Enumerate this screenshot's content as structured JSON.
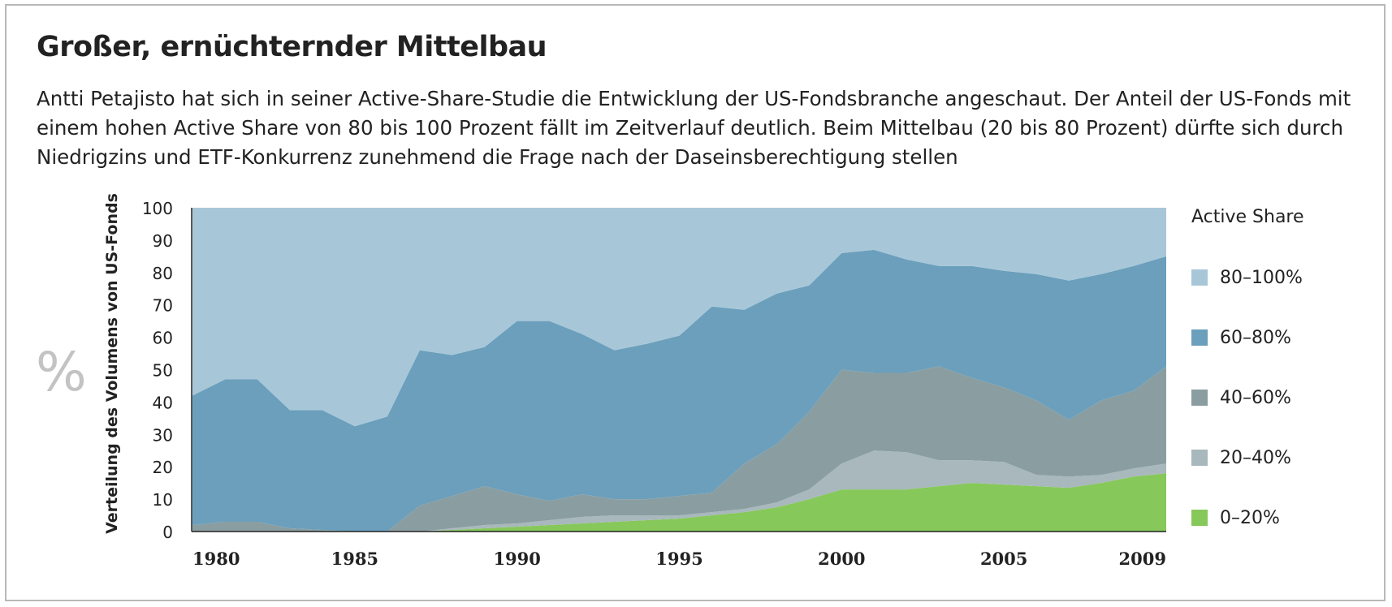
{
  "title": "Großer, ernüchternder Mittelbau",
  "subtitle": "Antti Petajisto hat sich in seiner Active-Share-Studie die Entwicklung der US-Fondsbranche angeschaut. Der Anteil der US-Fonds mit einem hohen Active Share von 80 bis 100 Prozent fällt im Zeitverlauf deutlich. Beim Mittelbau (20 bis 80 Prozent) dürfte sich durch Niedrigzins und ETF-Konkurrenz zunehmend die Frage nach der Daseinsberechtigung stellen",
  "unit_symbol": "%",
  "chart_data": {
    "type": "area",
    "stacked": true,
    "ylabel": "Verteilung des Volumens von US-Fonds",
    "ylim": [
      0,
      100
    ],
    "xlim": [
      1980,
      2010
    ],
    "x_ticks": [
      1980,
      1985,
      1990,
      1995,
      2000,
      2005,
      2009
    ],
    "y_ticks": [
      0,
      10,
      20,
      30,
      40,
      50,
      60,
      70,
      80,
      90,
      100
    ],
    "legend_title": "Active Share",
    "legend_position": "right",
    "x": [
      1980,
      1981,
      1982,
      1983,
      1984,
      1985,
      1986,
      1987,
      1988,
      1989,
      1990,
      1991,
      1992,
      1993,
      1994,
      1995,
      1996,
      1997,
      1998,
      1999,
      2000,
      2001,
      2002,
      2003,
      2004,
      2005,
      2006,
      2007,
      2008,
      2009,
      2010
    ],
    "series": [
      {
        "name": "0–20%",
        "color": "#86c85a",
        "values": [
          0,
          0,
          0,
          0,
          0,
          0,
          0,
          0,
          0.5,
          1,
          1.5,
          2,
          2.5,
          3,
          3.5,
          4,
          5,
          6,
          7.5,
          10,
          13,
          13,
          13,
          14,
          15,
          14.5,
          14,
          13.5,
          15,
          17,
          18
        ]
      },
      {
        "name": "20–40%",
        "color": "#a8b8bd",
        "values": [
          0,
          0,
          0,
          0,
          0,
          0,
          0,
          0,
          0.5,
          1,
          1,
          1.5,
          2,
          2,
          1.5,
          1,
          1,
          1,
          1.5,
          3,
          8,
          12,
          11.5,
          8,
          7,
          7,
          3.5,
          3.5,
          2.5,
          2.5,
          3
        ]
      },
      {
        "name": "40–60%",
        "color": "#8a9ea1",
        "values": [
          2,
          3,
          3,
          1,
          0.5,
          0,
          0,
          8,
          10,
          12,
          9,
          6,
          7,
          5,
          5,
          6,
          6,
          14,
          18,
          24,
          29,
          24,
          24.5,
          29,
          25.5,
          23,
          23,
          17.5,
          23,
          24,
          30
        ]
      },
      {
        "name": "60–80%",
        "color": "#6b9fbc",
        "values": [
          40,
          44,
          44,
          36.5,
          37,
          32.5,
          35.5,
          48,
          43.5,
          43,
          53.5,
          55.5,
          49.5,
          46,
          48,
          49.5,
          57.5,
          47.5,
          46.5,
          39,
          36,
          38,
          35,
          31,
          34.5,
          36,
          39,
          43,
          39,
          38.5,
          34
        ]
      },
      {
        "name": "80–100%",
        "color": "#a7c7d9",
        "values": [
          58,
          53,
          53,
          62.5,
          62.5,
          67.5,
          64.5,
          44,
          45.5,
          43,
          35,
          35,
          39,
          44,
          42,
          39.5,
          30.5,
          31.5,
          26.5,
          24,
          14,
          13,
          16,
          18,
          18,
          19.5,
          20.5,
          22.5,
          20.5,
          18,
          15
        ]
      }
    ]
  }
}
